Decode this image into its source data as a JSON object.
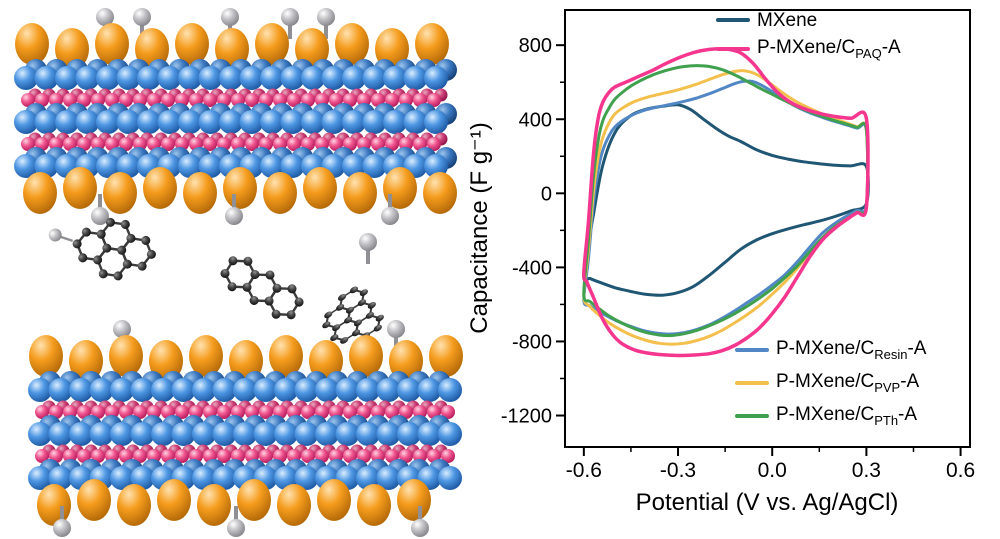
{
  "illustration": {
    "components": [
      "mxene-slab-top",
      "intercalated-carbon-molecules",
      "mxene-slab-bottom"
    ],
    "colors": {
      "mxene_sphere_blue": "#3f86d8",
      "interlayer_pink": "#ef3e7b",
      "surface_group_orange": "#f09321",
      "terminal_gray": "#bcbcbf",
      "carbon_black": "#2f2f2f"
    }
  },
  "chart_data": {
    "type": "line",
    "subtype": "cyclic-voltammetry",
    "title": "",
    "xlabel": "Potential (V vs. Ag/AgCl)",
    "ylabel": "Capacitance (F g⁻¹)",
    "xlim": [
      -0.66,
      0.63
    ],
    "ylim": [
      -1370,
      990
    ],
    "xtick_values": [
      -0.6,
      -0.3,
      0.0,
      0.3,
      0.6
    ],
    "xtick_labels": [
      "-0.6",
      "-0.3",
      "0.0",
      "0.3",
      "0.6"
    ],
    "xminor_values": [
      -0.45,
      -0.15,
      0.15,
      0.45
    ],
    "ytick_values": [
      800,
      400,
      0,
      -400,
      -800,
      -1200
    ],
    "ytick_labels": [
      "800",
      "400",
      "0",
      "-400",
      "-800",
      "-1200"
    ],
    "yminor_values": [
      600,
      200,
      -200,
      -600,
      -1000
    ],
    "grid": false,
    "frame": true,
    "legend": {
      "top": [
        0,
        1
      ],
      "bottom": [
        2,
        3,
        4
      ]
    },
    "draw_order": [
      0,
      2,
      3,
      4,
      1
    ],
    "series": [
      {
        "name": "MXene",
        "label": {
          "pre": "MXene",
          "sub": "",
          "post": ""
        },
        "color": "#1f5673",
        "width": 3,
        "points": [
          [
            -0.6,
            -440
          ],
          [
            -0.57,
            -120
          ],
          [
            -0.54,
            150
          ],
          [
            -0.5,
            330
          ],
          [
            -0.45,
            420
          ],
          [
            -0.4,
            455
          ],
          [
            -0.35,
            470
          ],
          [
            -0.3,
            478
          ],
          [
            -0.26,
            452
          ],
          [
            -0.22,
            402
          ],
          [
            -0.18,
            352
          ],
          [
            -0.14,
            310
          ],
          [
            -0.1,
            280
          ],
          [
            -0.05,
            235
          ],
          [
            0.0,
            205
          ],
          [
            0.05,
            185
          ],
          [
            0.1,
            170
          ],
          [
            0.15,
            160
          ],
          [
            0.2,
            152
          ],
          [
            0.25,
            148
          ],
          [
            0.3,
            145
          ],
          [
            0.3,
            -55
          ],
          [
            0.25,
            -95
          ],
          [
            0.2,
            -125
          ],
          [
            0.15,
            -150
          ],
          [
            0.1,
            -170
          ],
          [
            0.05,
            -192
          ],
          [
            0.0,
            -218
          ],
          [
            -0.05,
            -252
          ],
          [
            -0.1,
            -302
          ],
          [
            -0.15,
            -372
          ],
          [
            -0.2,
            -442
          ],
          [
            -0.25,
            -502
          ],
          [
            -0.3,
            -536
          ],
          [
            -0.35,
            -550
          ],
          [
            -0.4,
            -546
          ],
          [
            -0.45,
            -530
          ],
          [
            -0.5,
            -510
          ],
          [
            -0.55,
            -480
          ],
          [
            -0.58,
            -460
          ]
        ]
      },
      {
        "name": "P-MXene/C_PAQ-A",
        "label": {
          "pre": "P-MXene/C",
          "sub": "PAQ",
          "post": "-A"
        },
        "color": "#f5368f",
        "width": 3.5,
        "points": [
          [
            -0.6,
            -430
          ],
          [
            -0.585,
            -150
          ],
          [
            -0.57,
            200
          ],
          [
            -0.555,
            400
          ],
          [
            -0.54,
            490
          ],
          [
            -0.52,
            545
          ],
          [
            -0.5,
            575
          ],
          [
            -0.46,
            605
          ],
          [
            -0.42,
            635
          ],
          [
            -0.38,
            665
          ],
          [
            -0.34,
            700
          ],
          [
            -0.3,
            730
          ],
          [
            -0.26,
            755
          ],
          [
            -0.22,
            772
          ],
          [
            -0.18,
            780
          ],
          [
            -0.14,
            778
          ],
          [
            -0.1,
            758
          ],
          [
            -0.06,
            700
          ],
          [
            -0.02,
            615
          ],
          [
            0.02,
            540
          ],
          [
            0.06,
            490
          ],
          [
            0.1,
            458
          ],
          [
            0.15,
            432
          ],
          [
            0.2,
            415
          ],
          [
            0.25,
            405
          ],
          [
            0.3,
            403
          ],
          [
            0.3,
            -75
          ],
          [
            0.27,
            -105
          ],
          [
            0.24,
            -138
          ],
          [
            0.2,
            -188
          ],
          [
            0.16,
            -252
          ],
          [
            0.12,
            -342
          ],
          [
            0.08,
            -452
          ],
          [
            0.04,
            -560
          ],
          [
            0.0,
            -650
          ],
          [
            -0.04,
            -725
          ],
          [
            -0.08,
            -780
          ],
          [
            -0.12,
            -822
          ],
          [
            -0.16,
            -850
          ],
          [
            -0.2,
            -866
          ],
          [
            -0.25,
            -873
          ],
          [
            -0.3,
            -876
          ],
          [
            -0.35,
            -872
          ],
          [
            -0.4,
            -862
          ],
          [
            -0.44,
            -845
          ],
          [
            -0.48,
            -810
          ],
          [
            -0.51,
            -760
          ],
          [
            -0.54,
            -680
          ],
          [
            -0.57,
            -560
          ],
          [
            -0.59,
            -480
          ]
        ]
      },
      {
        "name": "P-MXene/C_Resin-A",
        "label": {
          "pre": "P-MXene/C",
          "sub": "Resin",
          "post": "-A"
        },
        "color": "#5187c4",
        "width": 3,
        "points": [
          [
            -0.6,
            -575
          ],
          [
            -0.585,
            -350
          ],
          [
            -0.57,
            -60
          ],
          [
            -0.555,
            120
          ],
          [
            -0.54,
            230
          ],
          [
            -0.52,
            310
          ],
          [
            -0.5,
            360
          ],
          [
            -0.47,
            400
          ],
          [
            -0.44,
            428
          ],
          [
            -0.4,
            452
          ],
          [
            -0.36,
            468
          ],
          [
            -0.32,
            482
          ],
          [
            -0.28,
            497
          ],
          [
            -0.24,
            515
          ],
          [
            -0.2,
            538
          ],
          [
            -0.16,
            565
          ],
          [
            -0.12,
            592
          ],
          [
            -0.09,
            605
          ],
          [
            -0.06,
            603
          ],
          [
            -0.03,
            580
          ],
          [
            0.0,
            550
          ],
          [
            0.04,
            505
          ],
          [
            0.08,
            465
          ],
          [
            0.12,
            435
          ],
          [
            0.16,
            410
          ],
          [
            0.2,
            388
          ],
          [
            0.24,
            368
          ],
          [
            0.27,
            352
          ],
          [
            0.3,
            340
          ],
          [
            0.3,
            -60
          ],
          [
            0.27,
            -92
          ],
          [
            0.24,
            -120
          ],
          [
            0.2,
            -162
          ],
          [
            0.16,
            -215
          ],
          [
            0.12,
            -290
          ],
          [
            0.08,
            -370
          ],
          [
            0.04,
            -440
          ],
          [
            0.0,
            -495
          ],
          [
            -0.04,
            -545
          ],
          [
            -0.08,
            -590
          ],
          [
            -0.12,
            -635
          ],
          [
            -0.16,
            -675
          ],
          [
            -0.2,
            -710
          ],
          [
            -0.24,
            -735
          ],
          [
            -0.28,
            -752
          ],
          [
            -0.32,
            -760
          ],
          [
            -0.36,
            -757
          ],
          [
            -0.4,
            -745
          ],
          [
            -0.44,
            -725
          ],
          [
            -0.48,
            -700
          ],
          [
            -0.52,
            -668
          ],
          [
            -0.55,
            -640
          ],
          [
            -0.58,
            -608
          ]
        ]
      },
      {
        "name": "P-MXene/C_PVP-A",
        "label": {
          "pre": "P-MXene/C",
          "sub": "PVP",
          "post": "-A"
        },
        "color": "#f4c04d",
        "width": 3,
        "points": [
          [
            -0.6,
            -555
          ],
          [
            -0.585,
            -300
          ],
          [
            -0.57,
            0
          ],
          [
            -0.555,
            190
          ],
          [
            -0.54,
            300
          ],
          [
            -0.52,
            380
          ],
          [
            -0.5,
            430
          ],
          [
            -0.47,
            468
          ],
          [
            -0.44,
            495
          ],
          [
            -0.4,
            518
          ],
          [
            -0.36,
            535
          ],
          [
            -0.32,
            550
          ],
          [
            -0.28,
            568
          ],
          [
            -0.24,
            590
          ],
          [
            -0.2,
            615
          ],
          [
            -0.16,
            640
          ],
          [
            -0.12,
            658
          ],
          [
            -0.09,
            662
          ],
          [
            -0.06,
            650
          ],
          [
            -0.03,
            622
          ],
          [
            0.0,
            585
          ],
          [
            0.04,
            535
          ],
          [
            0.08,
            492
          ],
          [
            0.12,
            458
          ],
          [
            0.16,
            428
          ],
          [
            0.2,
            402
          ],
          [
            0.24,
            378
          ],
          [
            0.27,
            360
          ],
          [
            0.3,
            345
          ],
          [
            0.3,
            -70
          ],
          [
            0.27,
            -102
          ],
          [
            0.24,
            -136
          ],
          [
            0.2,
            -180
          ],
          [
            0.16,
            -240
          ],
          [
            0.12,
            -320
          ],
          [
            0.08,
            -405
          ],
          [
            0.04,
            -480
          ],
          [
            0.0,
            -545
          ],
          [
            -0.04,
            -605
          ],
          [
            -0.08,
            -655
          ],
          [
            -0.12,
            -700
          ],
          [
            -0.16,
            -740
          ],
          [
            -0.2,
            -772
          ],
          [
            -0.24,
            -795
          ],
          [
            -0.28,
            -810
          ],
          [
            -0.32,
            -815
          ],
          [
            -0.36,
            -810
          ],
          [
            -0.4,
            -795
          ],
          [
            -0.44,
            -772
          ],
          [
            -0.48,
            -740
          ],
          [
            -0.52,
            -700
          ],
          [
            -0.55,
            -660
          ],
          [
            -0.58,
            -612
          ]
        ]
      },
      {
        "name": "P-MXene/C_PTh-A",
        "label": {
          "pre": "P-MXene/C",
          "sub": "PTh",
          "post": "-A"
        },
        "color": "#3fa04d",
        "width": 3,
        "points": [
          [
            -0.6,
            -545
          ],
          [
            -0.585,
            -250
          ],
          [
            -0.57,
            80
          ],
          [
            -0.555,
            280
          ],
          [
            -0.54,
            390
          ],
          [
            -0.52,
            460
          ],
          [
            -0.5,
            510
          ],
          [
            -0.47,
            555
          ],
          [
            -0.44,
            590
          ],
          [
            -0.4,
            625
          ],
          [
            -0.36,
            652
          ],
          [
            -0.32,
            672
          ],
          [
            -0.28,
            685
          ],
          [
            -0.24,
            690
          ],
          [
            -0.2,
            685
          ],
          [
            -0.16,
            668
          ],
          [
            -0.12,
            640
          ],
          [
            -0.08,
            605
          ],
          [
            -0.04,
            568
          ],
          [
            0.0,
            535
          ],
          [
            0.04,
            500
          ],
          [
            0.08,
            468
          ],
          [
            0.12,
            440
          ],
          [
            0.16,
            415
          ],
          [
            0.2,
            392
          ],
          [
            0.24,
            372
          ],
          [
            0.27,
            356
          ],
          [
            0.3,
            345
          ],
          [
            0.3,
            -70
          ],
          [
            0.27,
            -102
          ],
          [
            0.24,
            -136
          ],
          [
            0.2,
            -180
          ],
          [
            0.16,
            -240
          ],
          [
            0.12,
            -315
          ],
          [
            0.08,
            -392
          ],
          [
            0.04,
            -456
          ],
          [
            0.0,
            -515
          ],
          [
            -0.04,
            -565
          ],
          [
            -0.08,
            -610
          ],
          [
            -0.12,
            -650
          ],
          [
            -0.16,
            -685
          ],
          [
            -0.2,
            -715
          ],
          [
            -0.24,
            -740
          ],
          [
            -0.28,
            -758
          ],
          [
            -0.32,
            -768
          ],
          [
            -0.36,
            -765
          ],
          [
            -0.4,
            -752
          ],
          [
            -0.44,
            -730
          ],
          [
            -0.48,
            -700
          ],
          [
            -0.52,
            -662
          ],
          [
            -0.55,
            -625
          ],
          [
            -0.58,
            -585
          ]
        ]
      }
    ]
  }
}
